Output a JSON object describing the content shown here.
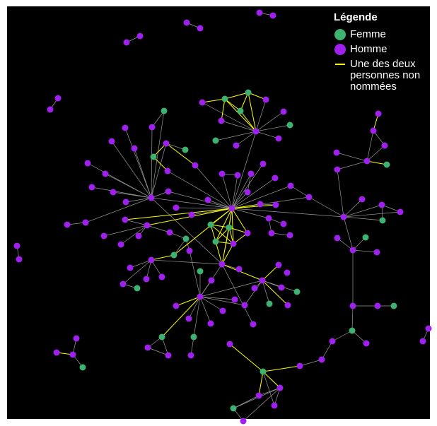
{
  "legend": {
    "title": "Légende",
    "items": [
      {
        "label": "Femme",
        "color": "#3cb371"
      },
      {
        "label": "Homme",
        "color": "#a020f0"
      },
      {
        "label_lines": [
          "Une des deux",
          "personnes non",
          "nommées"
        ],
        "color": "#ffff00"
      }
    ]
  }
}
